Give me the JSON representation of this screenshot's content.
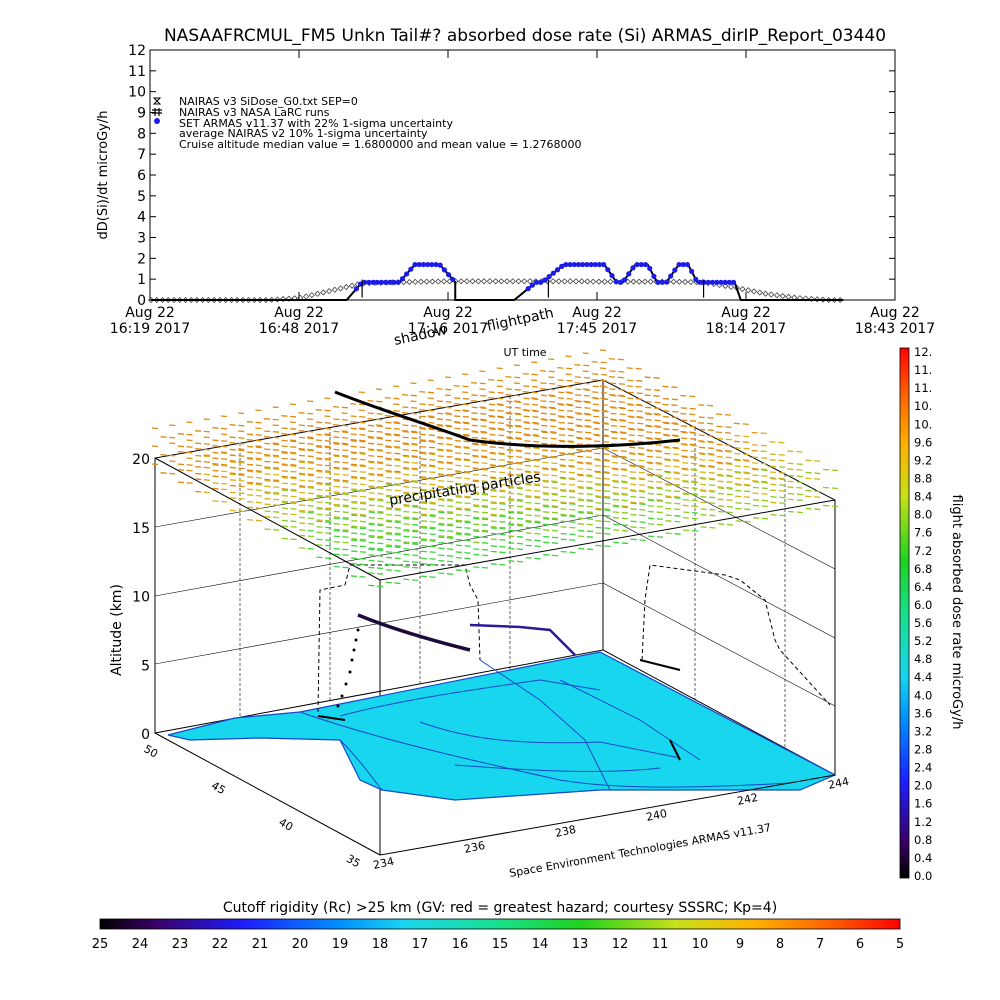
{
  "chart_data": [
    {
      "type": "line",
      "title": "NASAAFRCMUL_FM5 Unkn Tail#? absorbed dose rate (Si) ARMAS_dirIP_Report_03440",
      "ylabel": "dD(Si)/dt microGy/h",
      "xlabel": "UT time",
      "ylim": [
        0,
        12
      ],
      "yticks": [
        "0",
        "1",
        "2",
        "3",
        "4",
        "5",
        "6",
        "7",
        "8",
        "9",
        "10",
        "11",
        "12"
      ],
      "xtick_labels": [
        {
          "line1": "Aug 22",
          "line2": "16:19 2017"
        },
        {
          "line1": "Aug 22",
          "line2": "16:48 2017"
        },
        {
          "line1": "Aug 22",
          "line2": "17:16 2017"
        },
        {
          "line1": "Aug 22",
          "line2": "17:45 2017"
        },
        {
          "line1": "Aug 22",
          "line2": "18:14 2017"
        },
        {
          "line1": "Aug 22",
          "line2": "18:43 2017"
        }
      ],
      "legend": [
        "NAIRAS v3 SiDose_G0.txt SEP=0",
        "NAIRAS v3 NASA LaRC runs",
        "SET ARMAS v11.37 with 22% 1-sigma uncertainty",
        "average NAIRAS v2 10% 1-sigma uncertainty",
        "Cruise altitude median value = 1.6800000 and mean value = 1.2768000"
      ],
      "legend_placement": "top-left",
      "series": [
        {
          "name": "NAIRAS v3 SiDose_G0.txt SEP=0",
          "x": [
            16.32,
            16.5,
            16.7,
            16.8,
            16.9,
            17.0,
            17.1,
            17.2,
            17.3,
            17.4,
            17.5,
            17.6,
            17.7,
            17.75,
            17.8,
            17.9,
            18.0,
            18.1,
            18.2,
            18.3,
            18.4,
            18.5,
            18.55
          ],
          "values": [
            0,
            0,
            0,
            0.1,
            0.45,
            0.8,
            0.85,
            0.88,
            0.9,
            0.9,
            0.9,
            0.9,
            0.9,
            0.88,
            0.88,
            0.88,
            0.88,
            0.85,
            0.6,
            0.3,
            0.1,
            0,
            0
          ]
        },
        {
          "name": "SET ARMAS v11.37 with 22% 1-sigma uncertainty",
          "x": [
            16.32,
            16.8,
            16.95,
            17.0,
            17.12,
            17.17,
            17.25,
            17.3,
            17.3,
            17.49,
            17.56,
            17.58,
            17.65,
            17.7,
            17.72,
            17.78,
            17.82,
            17.84,
            17.88,
            17.92,
            17.95,
            17.98,
            18.02,
            18.05,
            18.08,
            18.12,
            18.2,
            18.22,
            18.4,
            18.55
          ],
          "values": [
            0,
            0,
            0,
            0.85,
            0.85,
            1.7,
            1.7,
            0.85,
            0,
            0,
            0.85,
            0.85,
            1.7,
            1.7,
            1.7,
            1.7,
            0.85,
            0.85,
            1.7,
            1.7,
            0.85,
            0.85,
            1.7,
            1.7,
            0.85,
            0.85,
            0.85,
            0,
            0,
            0
          ]
        }
      ]
    },
    {
      "type": "scatter",
      "title": "",
      "ylabel": "Altitude (km)",
      "zlim": [
        0,
        20
      ],
      "zticks": [
        "0",
        "5",
        "10",
        "15",
        "20"
      ],
      "lat_ticks": [
        "50",
        "45",
        "40",
        "35"
      ],
      "lon_ticks": [
        "234",
        "236",
        "238",
        "240",
        "242",
        "244"
      ],
      "annotations": [
        "shadow",
        "flightpath",
        "precipitating particles"
      ],
      "credit": "Space Environment Technologies ARMAS v11.37",
      "colorbar_label": "flight absorbed dose rate microGy/h",
      "colorbar_ticks": [
        "0.0",
        "0.4",
        "0.8",
        "1.2",
        "1.6",
        "2.0",
        "2.4",
        "2.8",
        "3.2",
        "3.6",
        "4.0",
        "4.4",
        "4.8",
        "5.2",
        "5.6",
        "6.0",
        "6.4",
        "6.8",
        "7.2",
        "7.6",
        "8.0",
        "8.4",
        "8.8",
        "9.2",
        "9.6",
        "10.",
        "10.",
        "11.",
        "11.",
        "12."
      ],
      "cutoff_title": "Cutoff rigidity (Rc) >25 km (GV: red = greatest hazard; courtesy SSSRC; Kp=4)",
      "cutoff_ticks": [
        "25",
        "24",
        "23",
        "22",
        "21",
        "20",
        "19",
        "18",
        "17",
        "16",
        "15",
        "14",
        "13",
        "12",
        "11",
        "10",
        "9",
        "8",
        "7",
        "6",
        "5"
      ],
      "colors": {
        "surface": "#18d6ee",
        "coast": "#1747c8",
        "armas": "#1b1bea",
        "nairas_dots": "#333333"
      }
    }
  ]
}
